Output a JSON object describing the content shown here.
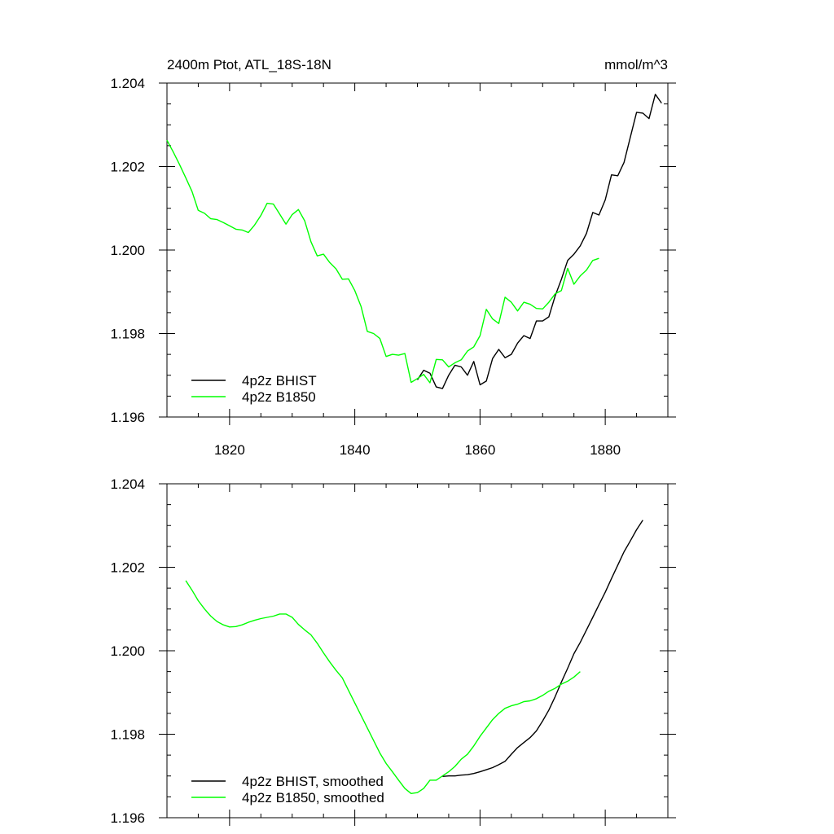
{
  "chart_data": [
    {
      "type": "line",
      "title": "2400m Ptot, ATL_18S-18N",
      "units": "mmol/m^3",
      "xlim": [
        1810,
        1890
      ],
      "ylim": [
        1.196,
        1.204
      ],
      "xticks": [
        1820,
        1840,
        1860,
        1880
      ],
      "yticks": [
        1.196,
        1.198,
        1.2,
        1.202,
        1.204
      ],
      "xtick_labels": [
        "1820",
        "1840",
        "1860",
        "1880"
      ],
      "ytick_labels": [
        "1.196",
        "1.198",
        "1.200",
        "1.202",
        "1.204"
      ],
      "legend_position": "bottom-left",
      "series": [
        {
          "name": "4p2z BHIST",
          "color": "#000000",
          "x": [
            1850,
            1851,
            1852,
            1853,
            1854,
            1855,
            1856,
            1857,
            1858,
            1859,
            1860,
            1861,
            1862,
            1863,
            1864,
            1865,
            1866,
            1867,
            1868,
            1869,
            1870,
            1871,
            1872,
            1873,
            1874,
            1875,
            1876,
            1877,
            1878,
            1879,
            1880,
            1881,
            1882,
            1883,
            1884,
            1885,
            1886,
            1887,
            1888,
            1889
          ],
          "y": [
            1.19689,
            1.19712,
            1.19705,
            1.19672,
            1.19668,
            1.197,
            1.19724,
            1.1972,
            1.197,
            1.19733,
            1.19677,
            1.19686,
            1.1974,
            1.19762,
            1.19742,
            1.1975,
            1.19777,
            1.19795,
            1.19788,
            1.1983,
            1.1983,
            1.1984,
            1.1989,
            1.1993,
            1.19975,
            1.1999,
            1.2001,
            1.2004,
            1.2009,
            1.20084,
            1.2012,
            1.2018,
            1.20178,
            1.2021,
            1.2027,
            1.2033,
            1.20328,
            1.20315,
            1.20373,
            1.20352
          ]
        },
        {
          "name": "4p2z B1850",
          "color": "#00ff00",
          "x": [
            1810,
            1811,
            1812,
            1813,
            1814,
            1815,
            1816,
            1817,
            1818,
            1819,
            1820,
            1821,
            1822,
            1823,
            1824,
            1825,
            1826,
            1827,
            1828,
            1829,
            1830,
            1831,
            1832,
            1833,
            1834,
            1835,
            1836,
            1837,
            1838,
            1839,
            1840,
            1841,
            1842,
            1843,
            1844,
            1845,
            1846,
            1847,
            1848,
            1849,
            1850,
            1851,
            1852,
            1853,
            1854,
            1855,
            1856,
            1857,
            1858,
            1859,
            1860,
            1861,
            1862,
            1863,
            1864,
            1865,
            1866,
            1867,
            1868,
            1869,
            1870,
            1871,
            1872,
            1873,
            1874,
            1875,
            1876,
            1877,
            1878,
            1879
          ],
          "y": [
            1.20263,
            1.20235,
            1.20205,
            1.20173,
            1.2014,
            1.20095,
            1.20088,
            1.20075,
            1.20073,
            1.20066,
            1.20058,
            1.2005,
            1.20048,
            1.20042,
            1.2006,
            1.20083,
            1.20112,
            1.2011,
            1.20086,
            1.20062,
            1.20085,
            1.20097,
            1.2007,
            1.2002,
            1.19986,
            1.1999,
            1.1997,
            1.19955,
            1.1993,
            1.19931,
            1.19903,
            1.19865,
            1.19805,
            1.198,
            1.19788,
            1.19745,
            1.1975,
            1.19748,
            1.19752,
            1.19683,
            1.19692,
            1.19702,
            1.19682,
            1.19738,
            1.19737,
            1.1972,
            1.1973,
            1.19737,
            1.19758,
            1.19768,
            1.19795,
            1.19858,
            1.19835,
            1.19824,
            1.19887,
            1.19875,
            1.19854,
            1.19875,
            1.1987,
            1.1986,
            1.19859,
            1.19875,
            1.19895,
            1.19903,
            1.19956,
            1.19918,
            1.19938,
            1.19952,
            1.19975,
            1.1998
          ]
        }
      ]
    },
    {
      "type": "line",
      "xlim": [
        1810,
        1890
      ],
      "ylim": [
        1.196,
        1.204
      ],
      "xticks": [
        1820,
        1840,
        1860,
        1880
      ],
      "yticks": [
        1.196,
        1.198,
        1.2,
        1.202,
        1.204
      ],
      "ytick_labels": [
        "1.196",
        "1.198",
        "1.200",
        "1.202",
        "1.204"
      ],
      "legend_position": "bottom-left",
      "series": [
        {
          "name": "4p2z BHIST, smoothed",
          "color": "#000000",
          "x": [
            1854,
            1855,
            1856,
            1857,
            1858,
            1859,
            1860,
            1861,
            1862,
            1863,
            1864,
            1865,
            1866,
            1867,
            1868,
            1869,
            1870,
            1871,
            1872,
            1873,
            1874,
            1875,
            1876,
            1877,
            1878,
            1879,
            1880,
            1881,
            1882,
            1883,
            1884,
            1885,
            1886
          ],
          "y": [
            1.19699,
            1.197,
            1.197,
            1.19702,
            1.19703,
            1.19706,
            1.1971,
            1.19715,
            1.1972,
            1.19727,
            1.19735,
            1.19752,
            1.19768,
            1.1978,
            1.19792,
            1.19808,
            1.19832,
            1.19858,
            1.1989,
            1.19925,
            1.19958,
            1.19993,
            1.2002,
            1.2005,
            1.2008,
            1.2011,
            1.2014,
            1.20173,
            1.20205,
            1.20237,
            1.20263,
            1.2029,
            1.20313
          ]
        },
        {
          "name": "4p2z B1850, smoothed",
          "color": "#00ff00",
          "x": [
            1813,
            1814,
            1815,
            1816,
            1817,
            1818,
            1819,
            1820,
            1821,
            1822,
            1823,
            1824,
            1825,
            1826,
            1827,
            1828,
            1829,
            1830,
            1831,
            1832,
            1833,
            1834,
            1835,
            1836,
            1837,
            1838,
            1839,
            1840,
            1841,
            1842,
            1843,
            1844,
            1845,
            1846,
            1847,
            1848,
            1849,
            1850,
            1851,
            1852,
            1853,
            1854,
            1855,
            1856,
            1857,
            1858,
            1859,
            1860,
            1861,
            1862,
            1863,
            1864,
            1865,
            1866,
            1867,
            1868,
            1869,
            1870,
            1871,
            1872,
            1873,
            1874,
            1875,
            1876
          ],
          "y": [
            1.20168,
            1.20145,
            1.2012,
            1.201,
            1.20083,
            1.2007,
            1.20062,
            1.20057,
            1.20058,
            1.20062,
            1.20068,
            1.20073,
            1.20077,
            1.2008,
            1.20083,
            1.20088,
            1.20088,
            1.2008,
            1.20063,
            1.2005,
            1.20038,
            1.20018,
            1.19995,
            1.19973,
            1.19953,
            1.19935,
            1.19905,
            1.19875,
            1.19845,
            1.19815,
            1.19785,
            1.19755,
            1.1973,
            1.1971,
            1.1969,
            1.1967,
            1.19658,
            1.1966,
            1.1967,
            1.1969,
            1.1969,
            1.197,
            1.1971,
            1.19723,
            1.1974,
            1.19752,
            1.19772,
            1.19795,
            1.19815,
            1.19835,
            1.1985,
            1.19862,
            1.19868,
            1.19872,
            1.19878,
            1.1988,
            1.19885,
            1.19893,
            1.19903,
            1.1991,
            1.1992,
            1.19927,
            1.19937,
            1.1995
          ]
        }
      ]
    }
  ]
}
